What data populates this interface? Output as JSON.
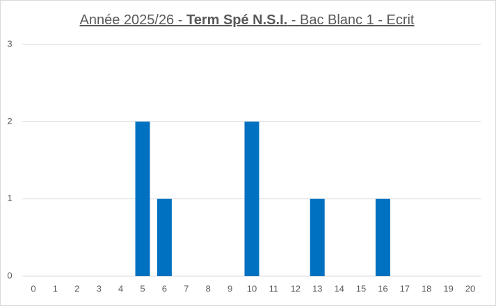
{
  "chart_data": {
    "type": "bar",
    "title_parts": [
      "Année 2025/26 - ",
      "Term Spé N.S.I.",
      " - Bac Blanc 1 - Ecrit"
    ],
    "categories": [
      "0",
      "1",
      "2",
      "3",
      "4",
      "5",
      "6",
      "7",
      "8",
      "9",
      "10",
      "11",
      "12",
      "13",
      "14",
      "15",
      "16",
      "17",
      "18",
      "19",
      "20"
    ],
    "values": [
      0,
      0,
      0,
      0,
      0,
      2,
      1,
      0,
      0,
      0,
      2,
      0,
      0,
      1,
      0,
      0,
      1,
      0,
      0,
      0,
      0
    ],
    "color": "#0070c0",
    "ylim": [
      0,
      3
    ],
    "yticks": [
      0,
      1,
      2,
      3
    ],
    "grid": true
  }
}
